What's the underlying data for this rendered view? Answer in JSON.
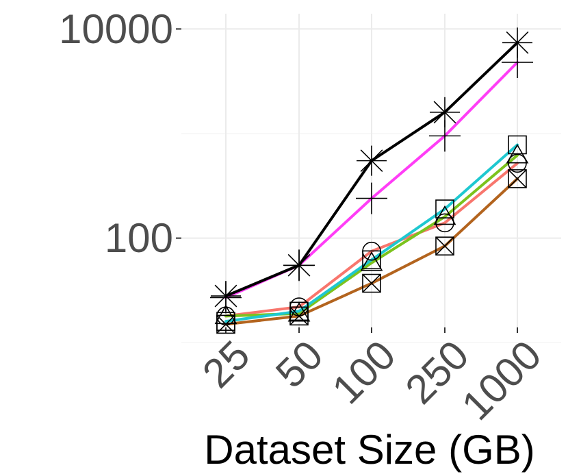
{
  "chart_data": {
    "type": "line",
    "title": "",
    "xlabel": "Dataset Size (GB)",
    "ylabel": "",
    "y_scale": "log10",
    "ylim": [
      14,
      14000
    ],
    "y_ticks": [
      100,
      10000
    ],
    "y_tick_labels": [
      "100",
      "10000"
    ],
    "categories": [
      "25",
      "50",
      "100",
      "250",
      "1000"
    ],
    "grid": true,
    "legend": "none",
    "series": [
      {
        "marker": "asterisk",
        "color": "#000000",
        "values": [
          28,
          55,
          550,
          1600,
          7400
        ]
      },
      {
        "marker": "plus",
        "color": "#ff3df6",
        "values": [
          27,
          55,
          240,
          950,
          4800
        ]
      },
      {
        "marker": "square",
        "color": "#1ec8d0",
        "values": [
          16,
          20,
          62,
          190,
          780
        ]
      },
      {
        "marker": "triangle",
        "color": "#7cc31d",
        "values": [
          18,
          19,
          58,
          160,
          620
        ]
      },
      {
        "marker": "circle",
        "color": "#f8766d",
        "values": [
          18,
          22,
          75,
          140,
          520
        ]
      },
      {
        "marker": "x-square",
        "color": "#b3641e",
        "values": [
          15,
          18,
          37,
          84,
          370
        ]
      }
    ]
  }
}
